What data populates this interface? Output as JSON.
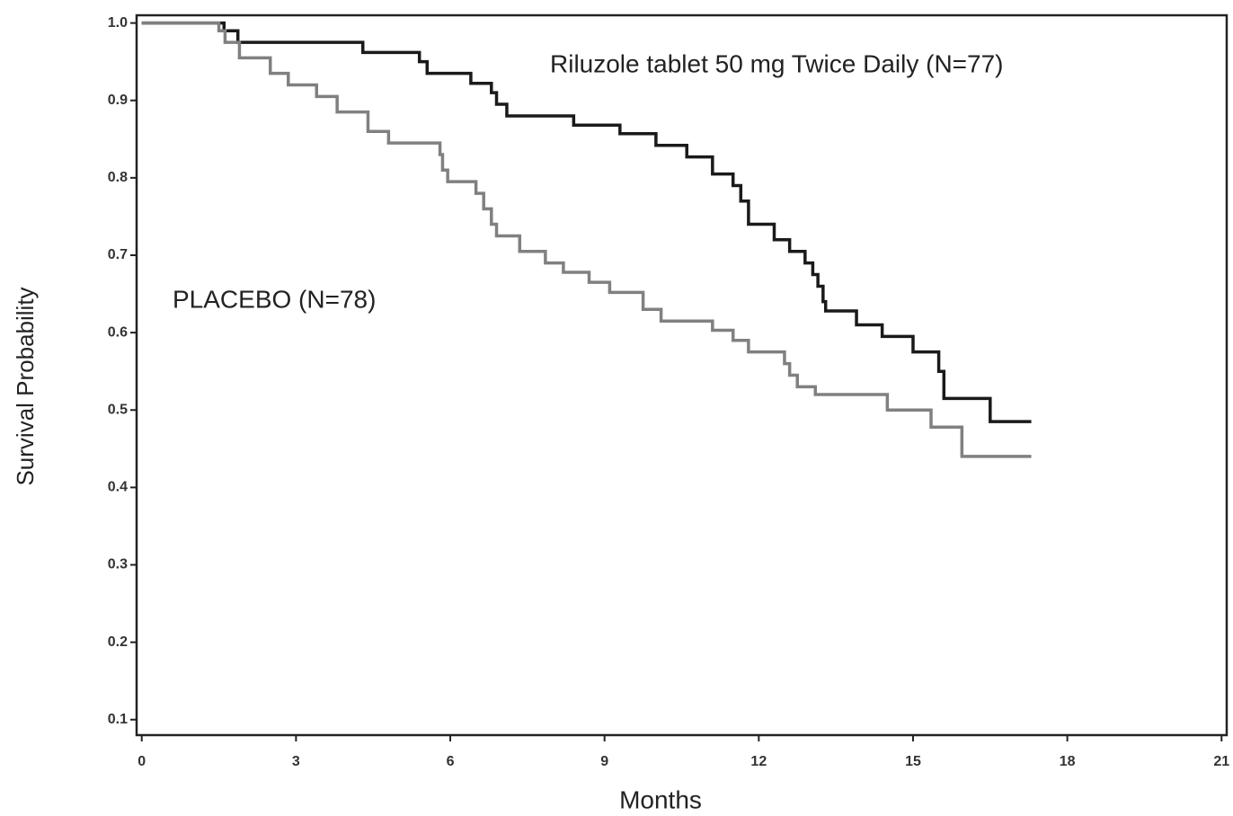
{
  "chart_data": {
    "type": "step-line",
    "step": "post",
    "x_label": "Months",
    "y_label": "Survival Probability",
    "xlim": [
      -0.1,
      21.1
    ],
    "ylim": [
      0.08,
      1.01
    ],
    "xticks": [
      0,
      3,
      6,
      9,
      12,
      15,
      18,
      21
    ],
    "yticks": [
      0.1,
      0.2,
      0.3,
      0.4,
      0.5,
      0.6,
      0.7,
      0.8,
      0.9,
      {
        "value": 1,
        "label": "1.0"
      }
    ],
    "series": [
      {
        "name": "Riluzole tablet 50 mg Twice Daily (N=77)",
        "color": "#1a1a1a",
        "x": [
          0,
          1.6,
          1.87,
          4.3,
          5.4,
          5.55,
          6.4,
          6.8,
          6.9,
          7.1,
          8.4,
          9.3,
          10.0,
          10.6,
          11.1,
          11.5,
          11.65,
          11.8,
          12.3,
          12.6,
          12.9,
          13.05,
          13.15,
          13.25,
          13.3,
          13.9,
          14.4,
          15.0,
          15.5,
          15.6,
          16.5,
          17.3
        ],
        "values": [
          1.0,
          0.99,
          0.975,
          0.962,
          0.95,
          0.935,
          0.922,
          0.91,
          0.895,
          0.88,
          0.868,
          0.857,
          0.842,
          0.827,
          0.805,
          0.79,
          0.77,
          0.74,
          0.72,
          0.705,
          0.69,
          0.675,
          0.66,
          0.64,
          0.628,
          0.61,
          0.595,
          0.575,
          0.55,
          0.515,
          0.485,
          0.485
        ]
      },
      {
        "name": "PLACEBO (N=78)",
        "color": "#808080",
        "x": [
          0,
          1.5,
          1.62,
          1.9,
          2.5,
          2.85,
          3.4,
          3.8,
          4.4,
          4.8,
          5.8,
          5.85,
          5.95,
          6.5,
          6.65,
          6.8,
          6.9,
          7.35,
          7.85,
          8.2,
          8.7,
          9.1,
          9.75,
          10.1,
          11.1,
          11.5,
          11.8,
          12.5,
          12.6,
          12.75,
          13.1,
          14.5,
          15.35,
          15.95,
          17.3
        ],
        "values": [
          1.0,
          0.99,
          0.975,
          0.955,
          0.935,
          0.92,
          0.905,
          0.885,
          0.86,
          0.845,
          0.83,
          0.81,
          0.795,
          0.78,
          0.76,
          0.74,
          0.725,
          0.705,
          0.69,
          0.678,
          0.665,
          0.652,
          0.63,
          0.615,
          0.603,
          0.59,
          0.575,
          0.56,
          0.545,
          0.53,
          0.52,
          0.5,
          0.478,
          0.44,
          0.44
        ]
      }
    ]
  }
}
